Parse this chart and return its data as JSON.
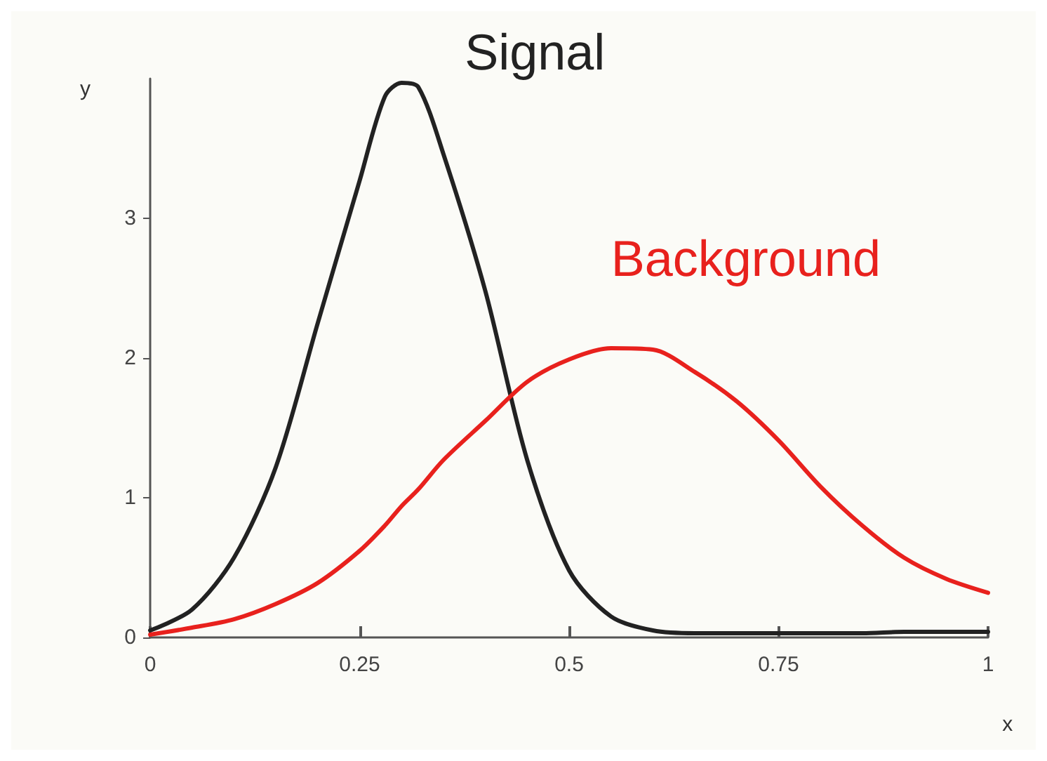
{
  "chart_data": {
    "type": "line",
    "xlabel": "x",
    "ylabel": "y",
    "x": [
      0,
      0.05,
      0.1,
      0.15,
      0.2,
      0.25,
      0.28,
      0.3,
      0.32,
      0.35,
      0.4,
      0.45,
      0.5,
      0.55,
      0.6,
      0.65,
      0.7,
      0.75,
      0.8,
      0.85,
      0.9,
      0.95,
      1
    ],
    "series": [
      {
        "name": "Signal",
        "color": "#222222",
        "values": [
          0.05,
          0.2,
          0.57,
          1.22,
          2.25,
          3.27,
          3.87,
          3.97,
          3.94,
          3.46,
          2.48,
          1.27,
          0.48,
          0.15,
          0.05,
          0.03,
          0.03,
          0.03,
          0.03,
          0.03,
          0.04,
          0.04,
          0.04
        ]
      },
      {
        "name": "Background",
        "color": "#e8211d",
        "values": [
          0.02,
          0.07,
          0.13,
          0.24,
          0.39,
          0.62,
          0.8,
          0.94,
          1.06,
          1.27,
          1.55,
          1.83,
          1.99,
          2.07,
          2.06,
          1.9,
          1.69,
          1.41,
          1.08,
          0.8,
          0.57,
          0.42,
          0.32
        ]
      }
    ],
    "xlim": [
      0,
      1
    ],
    "xticks": [
      0,
      0.25,
      0.5,
      0.75,
      1
    ],
    "ylim": [
      0,
      4
    ],
    "yticks": [
      0,
      1,
      2,
      3
    ],
    "grid": false,
    "legend": false,
    "marker": "none",
    "line_style": "solid"
  }
}
